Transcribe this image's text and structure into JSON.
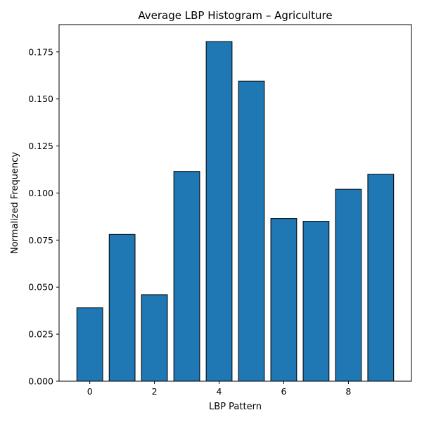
{
  "chart_data": {
    "type": "bar",
    "title": "Average LBP Histogram – Agriculture",
    "xlabel": "LBP Pattern",
    "ylabel": "Normalized Frequency",
    "categories": [
      0,
      1,
      2,
      3,
      4,
      5,
      6,
      7,
      8,
      9
    ],
    "values": [
      0.039,
      0.078,
      0.046,
      0.1115,
      0.1805,
      0.1595,
      0.0865,
      0.085,
      0.102,
      0.11
    ],
    "xlim": [
      -0.95,
      9.95
    ],
    "ylim": [
      0,
      0.1895
    ],
    "xticks": [
      0,
      2,
      4,
      6,
      8
    ],
    "xtick_labels": [
      "0",
      "2",
      "4",
      "6",
      "8"
    ],
    "yticks": [
      0,
      0.025,
      0.05,
      0.075,
      0.1,
      0.125,
      0.15,
      0.175
    ],
    "ytick_labels": [
      "0.000",
      "0.025",
      "0.050",
      "0.075",
      "0.100",
      "0.125",
      "0.150",
      "0.175"
    ],
    "bar_color": "#1f77b4",
    "edge_color": "#000000",
    "grid": false,
    "legend": "none"
  }
}
